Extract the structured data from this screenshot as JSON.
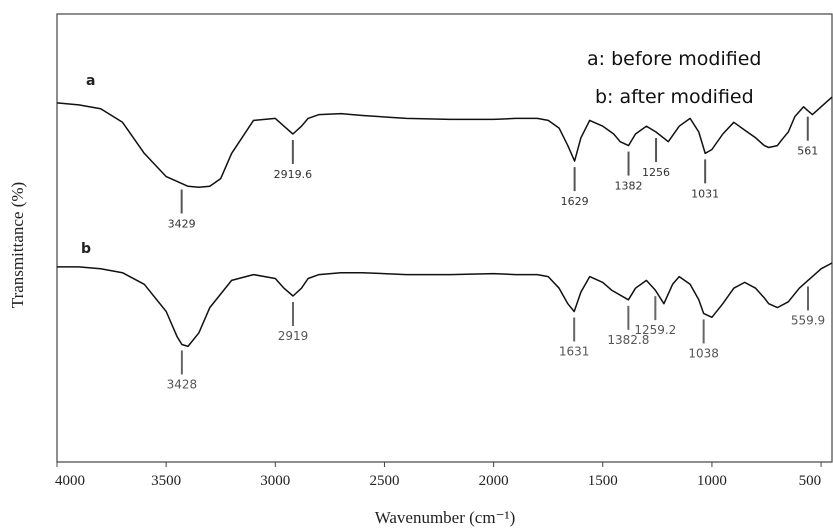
{
  "chart_data": {
    "type": "line",
    "xlabel": "Wavenumber (cm⁻¹)",
    "ylabel": "Transmittance (%)",
    "xlim": [
      4000,
      450
    ],
    "x_reversed": true,
    "x_ticks": [
      4000,
      3500,
      3000,
      2500,
      2000,
      1500,
      1000,
      500
    ],
    "legend": [
      "a: before modified",
      "b: after modified"
    ],
    "legend_position": "top-right",
    "grid": false,
    "y_ticks_shown": false,
    "series": [
      {
        "name": "a",
        "x": [
          4000,
          3900,
          3800,
          3700,
          3600,
          3500,
          3400,
          3350,
          3300,
          3250,
          3200,
          3100,
          3000,
          2960,
          2919.6,
          2880,
          2850,
          2800,
          2700,
          2600,
          2400,
          2200,
          2000,
          1900,
          1800,
          1750,
          1700,
          1660,
          1629,
          1600,
          1560,
          1500,
          1450,
          1420,
          1382,
          1350,
          1300,
          1256,
          1200,
          1150,
          1100,
          1060,
          1031,
          1000,
          950,
          900,
          850,
          800,
          760,
          740,
          700,
          680,
          650,
          620,
          580,
          561,
          540,
          500,
          450
        ],
        "y": [
          0.82,
          0.81,
          0.79,
          0.72,
          0.56,
          0.44,
          0.39,
          0.385,
          0.39,
          0.43,
          0.56,
          0.73,
          0.74,
          0.7,
          0.66,
          0.7,
          0.74,
          0.76,
          0.765,
          0.755,
          0.74,
          0.735,
          0.735,
          0.74,
          0.74,
          0.73,
          0.69,
          0.6,
          0.52,
          0.64,
          0.73,
          0.7,
          0.66,
          0.62,
          0.6,
          0.66,
          0.7,
          0.67,
          0.62,
          0.7,
          0.74,
          0.67,
          0.56,
          0.58,
          0.66,
          0.72,
          0.68,
          0.64,
          0.6,
          0.59,
          0.6,
          0.63,
          0.67,
          0.75,
          0.8,
          0.78,
          0.76,
          0.8,
          0.85
        ]
      },
      {
        "name": "b",
        "x": [
          4000,
          3900,
          3800,
          3700,
          3600,
          3500,
          3450,
          3428,
          3400,
          3350,
          3300,
          3200,
          3100,
          3000,
          2960,
          2919,
          2880,
          2850,
          2800,
          2700,
          2600,
          2400,
          2200,
          2000,
          1900,
          1800,
          1750,
          1700,
          1660,
          1631,
          1600,
          1560,
          1500,
          1460,
          1382.8,
          1350,
          1300,
          1259.2,
          1220,
          1180,
          1150,
          1100,
          1060,
          1038,
          1000,
          950,
          900,
          850,
          800,
          760,
          740,
          700,
          650,
          600,
          559.9,
          540,
          500,
          450
        ],
        "y": [
          0.81,
          0.81,
          0.8,
          0.78,
          0.72,
          0.58,
          0.45,
          0.41,
          0.4,
          0.47,
          0.6,
          0.74,
          0.77,
          0.75,
          0.7,
          0.66,
          0.7,
          0.75,
          0.77,
          0.78,
          0.78,
          0.77,
          0.77,
          0.775,
          0.77,
          0.77,
          0.76,
          0.7,
          0.62,
          0.58,
          0.68,
          0.76,
          0.73,
          0.69,
          0.64,
          0.7,
          0.74,
          0.69,
          0.62,
          0.72,
          0.76,
          0.72,
          0.64,
          0.57,
          0.55,
          0.62,
          0.7,
          0.73,
          0.7,
          0.65,
          0.62,
          0.6,
          0.63,
          0.7,
          0.74,
          0.76,
          0.8,
          0.83
        ]
      }
    ],
    "peak_labels_a": [
      {
        "x": 3429,
        "text": "3429"
      },
      {
        "x": 2919.6,
        "text": "2919.6"
      },
      {
        "x": 1629,
        "text": "1629"
      },
      {
        "x": 1382,
        "text": "1382"
      },
      {
        "x": 1256,
        "text": "1256"
      },
      {
        "x": 1031,
        "text": "1031"
      },
      {
        "x": 561,
        "text": "561"
      }
    ],
    "peak_labels_b": [
      {
        "x": 3428,
        "text": "3428"
      },
      {
        "x": 2919,
        "text": "2919"
      },
      {
        "x": 1631,
        "text": "1631"
      },
      {
        "x": 1382.8,
        "text": "1382.8"
      },
      {
        "x": 1259.2,
        "text": "1259.2"
      },
      {
        "x": 1038,
        "text": "1038"
      },
      {
        "x": 559.9,
        "text": "559.9"
      }
    ]
  }
}
